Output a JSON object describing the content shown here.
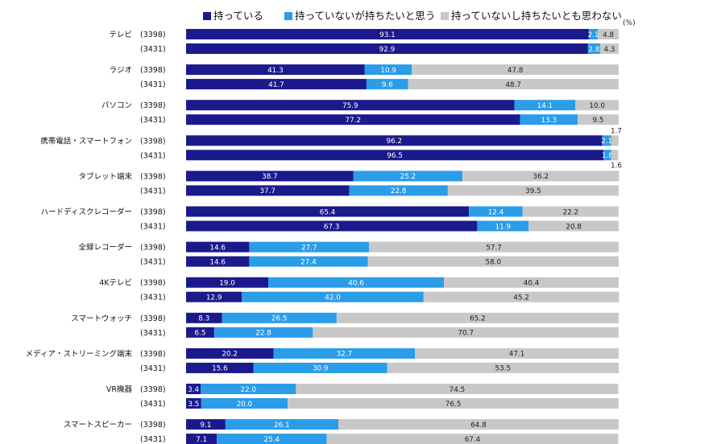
{
  "legend": [
    {
      "label": "持っている",
      "color": "#1a1a8c"
    },
    {
      "label": "持っていないが持ちたいと思う",
      "color": "#2b9ce8"
    },
    {
      "label": "持っていないし持ちたいとも思わない",
      "color": "#c8c8c8"
    }
  ],
  "unit": "(%)",
  "chart_data": {
    "type": "bar",
    "orientation": "horizontal",
    "stacked": true,
    "xlim": [
      0,
      100
    ],
    "series_names": [
      "持っている",
      "持っていないが持ちたいと思う",
      "持っていないし持ちたいとも思わない"
    ],
    "groups": [
      {
        "category": "テレビ",
        "rows": [
          {
            "n": "(3398)",
            "values": [
              93.1,
              2.1,
              4.8
            ]
          },
          {
            "n": "(3431)",
            "values": [
              92.9,
              2.8,
              4.3
            ]
          }
        ]
      },
      {
        "category": "ラジオ",
        "rows": [
          {
            "n": "(3398)",
            "values": [
              41.3,
              10.9,
              47.8
            ]
          },
          {
            "n": "(3431)",
            "values": [
              41.7,
              9.6,
              48.7
            ]
          }
        ]
      },
      {
        "category": "パソコン",
        "rows": [
          {
            "n": "(3398)",
            "values": [
              75.9,
              14.1,
              10.0
            ]
          },
          {
            "n": "(3431)",
            "values": [
              77.2,
              13.3,
              9.5
            ]
          }
        ]
      },
      {
        "category": "携帯電話・スマートフォン",
        "rows": [
          {
            "n": "(3398)",
            "values": [
              96.2,
              2.1,
              1.7
            ]
          },
          {
            "n": "(3431)",
            "values": [
              96.5,
              1.8,
              1.6
            ]
          }
        ]
      },
      {
        "category": "タブレット端末",
        "rows": [
          {
            "n": "(3398)",
            "values": [
              38.7,
              25.2,
              36.2
            ]
          },
          {
            "n": "(3431)",
            "values": [
              37.7,
              22.8,
              39.5
            ]
          }
        ]
      },
      {
        "category": "ハードディスクレコーダー",
        "rows": [
          {
            "n": "(3398)",
            "values": [
              65.4,
              12.4,
              22.2
            ]
          },
          {
            "n": "(3431)",
            "values": [
              67.3,
              11.9,
              20.8
            ]
          }
        ]
      },
      {
        "category": "全録レコーダー",
        "rows": [
          {
            "n": "(3398)",
            "values": [
              14.6,
              27.7,
              57.7
            ]
          },
          {
            "n": "(3431)",
            "values": [
              14.6,
              27.4,
              58.0
            ]
          }
        ]
      },
      {
        "category": "4Kテレビ",
        "rows": [
          {
            "n": "(3398)",
            "values": [
              19.0,
              40.6,
              40.4
            ]
          },
          {
            "n": "(3431)",
            "values": [
              12.9,
              42.0,
              45.2
            ]
          }
        ]
      },
      {
        "category": "スマートウォッチ",
        "rows": [
          {
            "n": "(3398)",
            "values": [
              8.3,
              26.5,
              65.2
            ]
          },
          {
            "n": "(3431)",
            "values": [
              6.5,
              22.8,
              70.7
            ]
          }
        ]
      },
      {
        "category": "メディア・ストリーミング端末",
        "rows": [
          {
            "n": "(3398)",
            "values": [
              20.2,
              32.7,
              47.1
            ]
          },
          {
            "n": "(3431)",
            "values": [
              15.6,
              30.9,
              53.5
            ]
          }
        ]
      },
      {
        "category": "VR機器",
        "rows": [
          {
            "n": "(3398)",
            "values": [
              3.4,
              22.0,
              74.5
            ]
          },
          {
            "n": "(3431)",
            "values": [
              3.5,
              20.0,
              76.5
            ]
          }
        ]
      },
      {
        "category": "スマートスピーカー",
        "rows": [
          {
            "n": "(3398)",
            "values": [
              9.1,
              26.1,
              64.8
            ]
          },
          {
            "n": "(3431)",
            "values": [
              7.1,
              25.4,
              67.4
            ]
          }
        ]
      }
    ]
  }
}
